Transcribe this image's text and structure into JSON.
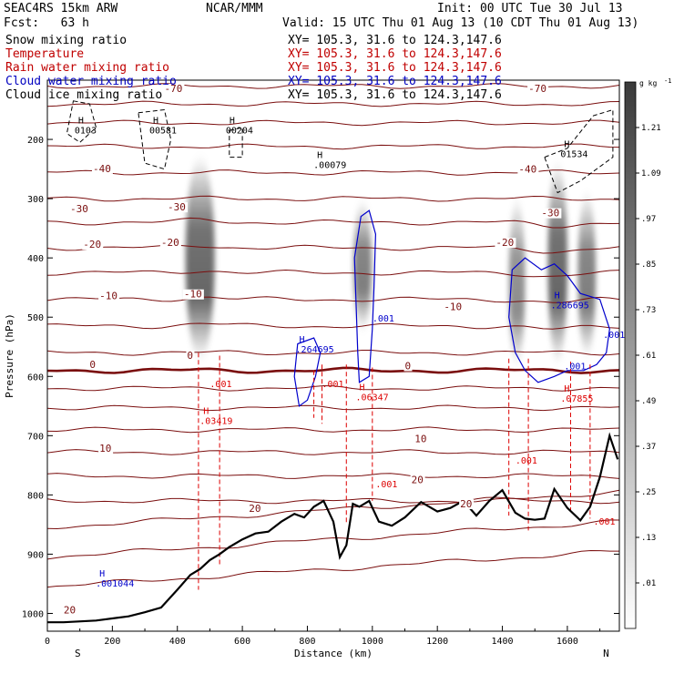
{
  "header": {
    "model": "SEAC4RS 15km ARW",
    "center": "NCAR/MMM",
    "init": "Init: 00 UTC Tue 30 Jul 13",
    "fcst": "Fcst:   63 h",
    "valid": "Valid: 15 UTC Thu 01 Aug 13 (10 CDT Thu 01 Aug 13)"
  },
  "fields": [
    {
      "name": "Snow mixing ratio",
      "xy": "XY= 105.3, 31.6 to 124.3,147.6",
      "color": "#000000"
    },
    {
      "name": "Temperature",
      "xy": "XY= 105.3, 31.6 to 124.3,147.6",
      "color": "#c00000"
    },
    {
      "name": "Rain water mixing ratio",
      "xy": "XY= 105.3, 31.6 to 124.3,147.6",
      "color": "#c00000"
    },
    {
      "name": "Cloud water mixing ratio",
      "xy": "XY= 105.3, 31.6 to 124.3,147.6",
      "color": "#0000c0"
    },
    {
      "name": "Cloud ice mixing ratio",
      "xy": "XY= 105.3, 31.6 to 124.3,147.6",
      "color": "#000000"
    }
  ],
  "colors": {
    "temperature": "#7a0e0e",
    "zero_isotherm": "#7a0e0e",
    "rain": "#dd0000",
    "cloud_water": "#0000cc",
    "cloud_ice": "#000000",
    "terrain": "#000000"
  },
  "chart_data": {
    "type": "cross-section",
    "xlabel": "Distance (km)",
    "ylabel": "Pressure (hPa)",
    "xlim": [
      0,
      1760
    ],
    "ylim": [
      1030,
      100
    ],
    "x_ticks": [
      "0",
      "200",
      "400",
      "600",
      "800",
      "1000",
      "1200",
      "1400",
      "1600"
    ],
    "y_ticks": [
      "200",
      "300",
      "400",
      "500",
      "600",
      "700",
      "800",
      "900",
      "1000"
    ],
    "endpoint_left": "S",
    "endpoint_right": "N",
    "colorbar": {
      "unit": "g kg",
      "unit_exp": "-1",
      "labels": [
        "1.21",
        "1.09",
        ".97",
        ".85",
        ".73",
        ".61",
        ".49",
        ".37",
        ".25",
        ".13",
        ".01"
      ]
    },
    "isotherm_labels": [
      {
        "text": "-70",
        "x": 360,
        "p": 120
      },
      {
        "text": "-70",
        "x": 1480,
        "p": 120
      },
      {
        "text": "-40",
        "x": 140,
        "p": 255
      },
      {
        "text": "-40",
        "x": 1450,
        "p": 256
      },
      {
        "text": "-30",
        "x": 70,
        "p": 323
      },
      {
        "text": "-30",
        "x": 370,
        "p": 320
      },
      {
        "text": "-30",
        "x": 1520,
        "p": 330
      },
      {
        "text": "-20",
        "x": 110,
        "p": 383
      },
      {
        "text": "-20",
        "x": 350,
        "p": 380
      },
      {
        "text": "-20",
        "x": 1380,
        "p": 380
      },
      {
        "text": "-10",
        "x": 160,
        "p": 470
      },
      {
        "text": "-10",
        "x": 420,
        "p": 467
      },
      {
        "text": "-10",
        "x": 1220,
        "p": 488
      },
      {
        "text": "0",
        "x": 130,
        "p": 586
      },
      {
        "text": "0",
        "x": 430,
        "p": 570
      },
      {
        "text": "0",
        "x": 1100,
        "p": 588
      },
      {
        "text": "10",
        "x": 160,
        "p": 727
      },
      {
        "text": "10",
        "x": 1130,
        "p": 711
      },
      {
        "text": "20",
        "x": 620,
        "p": 829
      },
      {
        "text": "20",
        "x": 1120,
        "p": 780
      },
      {
        "text": "20",
        "x": 1270,
        "p": 821
      },
      {
        "text": "20",
        "x": 50,
        "p": 1000
      }
    ],
    "isotherm_pressures": [
      110,
      140,
      172,
      212,
      256,
      300,
      340,
      383,
      425,
      470,
      515,
      560,
      590,
      620,
      653,
      690,
      728,
      768,
      810,
      855,
      905,
      955
    ],
    "extrema": [
      {
        "text": "H",
        "value": "0103",
        "x": 95,
        "p": 190,
        "kind": "ice"
      },
      {
        "text": "H",
        "value": "00581",
        "x": 325,
        "p": 190,
        "kind": "ice"
      },
      {
        "text": "H",
        "value": "00204",
        "x": 560,
        "p": 190,
        "kind": "ice"
      },
      {
        "text": "H",
        "value": ".00079",
        "x": 830,
        "p": 248,
        "kind": "ice"
      },
      {
        "text": "H",
        "value": "01534",
        "x": 1590,
        "p": 230,
        "kind": "ice"
      },
      {
        "text": "H",
        "value": ".264695",
        "x": 775,
        "p": 560,
        "kind": "cloud_water"
      },
      {
        "text": "H",
        "value": ".286695",
        "x": 1560,
        "p": 485,
        "kind": "cloud_water"
      },
      {
        "text": "H",
        "value": ".001044",
        "x": 160,
        "p": 955,
        "kind": "cloud_water"
      },
      {
        "text": "H",
        "value": ".06347",
        "x": 960,
        "p": 640,
        "kind": "rain"
      },
      {
        "text": "H",
        "value": ".03419",
        "x": 480,
        "p": 680,
        "kind": "rain"
      },
      {
        "text": "H",
        "value": ".07855",
        "x": 1590,
        "p": 643,
        "kind": "rain"
      }
    ],
    "contour_labels": [
      {
        "text": ".001",
        "x": 500,
        "p": 618,
        "kind": "rain"
      },
      {
        "text": ".001",
        "x": 845,
        "p": 618,
        "kind": "rain"
      },
      {
        "text": ".001",
        "x": 1010,
        "p": 787,
        "kind": "rain"
      },
      {
        "text": ".001",
        "x": 1440,
        "p": 747,
        "kind": "rain"
      },
      {
        "text": ".001",
        "x": 1680,
        "p": 850,
        "kind": "rain"
      },
      {
        "text": ".001",
        "x": 1000,
        "p": 507,
        "kind": "cloud_water"
      },
      {
        "text": ".001",
        "x": 1710,
        "p": 535,
        "kind": "cloud_water"
      },
      {
        "text": ".001",
        "x": 1590,
        "p": 588,
        "kind": "cloud_water"
      }
    ],
    "snow_columns": [
      {
        "x": 470,
        "p_top": 230,
        "p_bottom": 570,
        "width_km": 90,
        "peak": 1.0
      },
      {
        "x": 970,
        "p_top": 305,
        "p_bottom": 520,
        "width_km": 55,
        "peak": 0.85
      },
      {
        "x": 1445,
        "p_top": 300,
        "p_bottom": 580,
        "width_km": 50,
        "peak": 0.75
      },
      {
        "x": 1570,
        "p_top": 240,
        "p_bottom": 575,
        "width_km": 60,
        "peak": 1.0
      },
      {
        "x": 1660,
        "p_top": 290,
        "p_bottom": 565,
        "width_km": 55,
        "peak": 0.85
      }
    ],
    "terrain": {
      "x": [
        0,
        50,
        150,
        250,
        300,
        350,
        400,
        440,
        470,
        500,
        530,
        560,
        600,
        640,
        680,
        720,
        760,
        790,
        820,
        850,
        880,
        900,
        920,
        940,
        960,
        990,
        1020,
        1060,
        1100,
        1150,
        1200,
        1240,
        1280,
        1320,
        1360,
        1400,
        1440,
        1470,
        1500,
        1530,
        1560,
        1600,
        1640,
        1670,
        1700,
        1730,
        1755
      ],
      "p": [
        1015,
        1015,
        1012,
        1005,
        998,
        990,
        960,
        935,
        925,
        910,
        900,
        888,
        875,
        865,
        862,
        845,
        832,
        838,
        820,
        810,
        845,
        905,
        885,
        815,
        820,
        810,
        845,
        852,
        838,
        812,
        828,
        822,
        810,
        835,
        810,
        792,
        830,
        840,
        842,
        840,
        790,
        822,
        843,
        820,
        770,
        700,
        740
      ]
    }
  }
}
